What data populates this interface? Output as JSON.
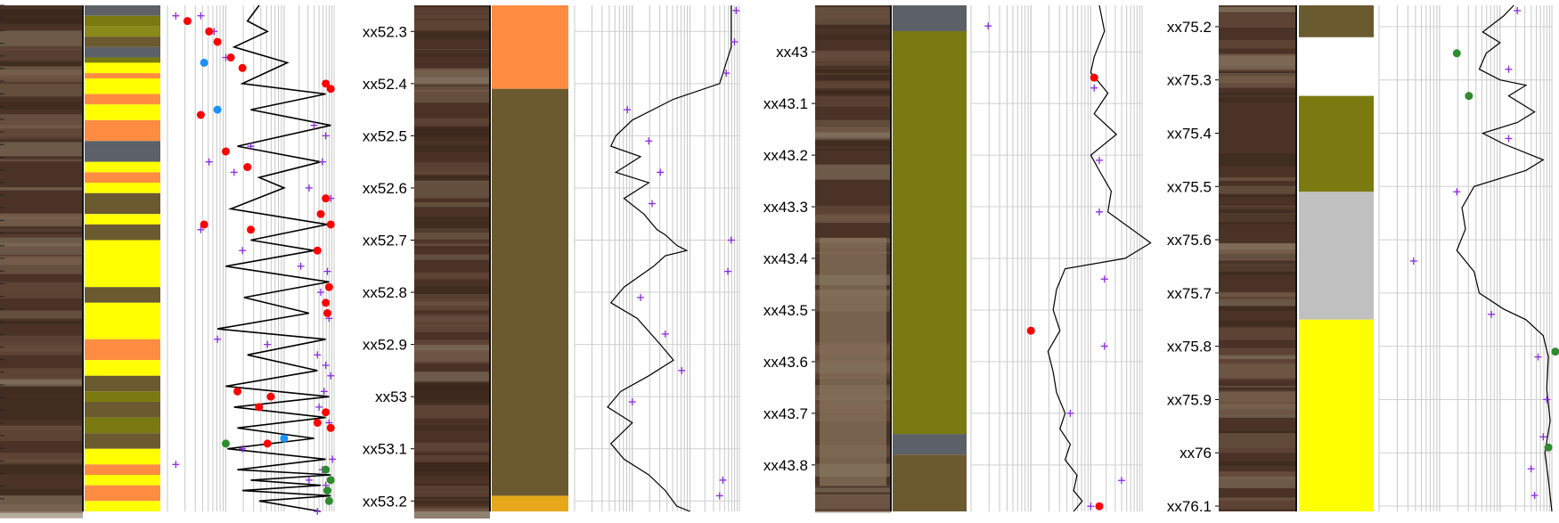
{
  "chart_data": [
    {
      "type": "line",
      "title": "",
      "core_image": "core-photo",
      "depth_ticks": [],
      "ylim": [
        52.25,
        53.22
      ],
      "xlim": [
        0,
        1
      ],
      "lithology": [
        {
          "top": 52.25,
          "base": 52.27,
          "color": "#5b6166"
        },
        {
          "top": 52.27,
          "base": 52.29,
          "color": "#7a7a10"
        },
        {
          "top": 52.29,
          "base": 52.31,
          "color": "#8a8a1a"
        },
        {
          "top": 52.31,
          "base": 52.33,
          "color": "#6b5a30"
        },
        {
          "top": 52.33,
          "base": 52.35,
          "color": "#5b6166"
        },
        {
          "top": 52.35,
          "base": 52.36,
          "color": "#7a7a10"
        },
        {
          "top": 52.36,
          "base": 52.38,
          "color": "#ffff00"
        },
        {
          "top": 52.38,
          "base": 52.39,
          "color": "#ff8c40"
        },
        {
          "top": 52.39,
          "base": 52.42,
          "color": "#ffff00"
        },
        {
          "top": 52.42,
          "base": 52.44,
          "color": "#ff8c40"
        },
        {
          "top": 52.44,
          "base": 52.47,
          "color": "#ffff00"
        },
        {
          "top": 52.47,
          "base": 52.51,
          "color": "#ff8c40"
        },
        {
          "top": 52.51,
          "base": 52.53,
          "color": "#5b6166"
        },
        {
          "top": 52.53,
          "base": 52.55,
          "color": "#5b6166"
        },
        {
          "top": 52.55,
          "base": 52.57,
          "color": "#ffff00"
        },
        {
          "top": 52.57,
          "base": 52.59,
          "color": "#ff8c40"
        },
        {
          "top": 52.59,
          "base": 52.61,
          "color": "#ffff00"
        },
        {
          "top": 52.61,
          "base": 52.65,
          "color": "#6b5a30"
        },
        {
          "top": 52.65,
          "base": 52.67,
          "color": "#ffff00"
        },
        {
          "top": 52.67,
          "base": 52.7,
          "color": "#6b5a30"
        },
        {
          "top": 52.7,
          "base": 52.79,
          "color": "#ffff00"
        },
        {
          "top": 52.79,
          "base": 52.82,
          "color": "#6b5a30"
        },
        {
          "top": 52.82,
          "base": 52.89,
          "color": "#ffff00"
        },
        {
          "top": 52.89,
          "base": 52.93,
          "color": "#ff8c40"
        },
        {
          "top": 52.93,
          "base": 52.96,
          "color": "#ffff00"
        },
        {
          "top": 52.96,
          "base": 52.99,
          "color": "#6b5a30"
        },
        {
          "top": 52.99,
          "base": 53.01,
          "color": "#7a7a10"
        },
        {
          "top": 53.01,
          "base": 53.04,
          "color": "#6b5a30"
        },
        {
          "top": 53.04,
          "base": 53.07,
          "color": "#7a7a10"
        },
        {
          "top": 53.07,
          "base": 53.1,
          "color": "#6b5a30"
        },
        {
          "top": 53.1,
          "base": 53.13,
          "color": "#ffff00"
        },
        {
          "top": 53.13,
          "base": 53.15,
          "color": "#ff8c40"
        },
        {
          "top": 53.15,
          "base": 53.17,
          "color": "#ffff00"
        },
        {
          "top": 53.17,
          "base": 53.2,
          "color": "#ff8c40"
        },
        {
          "top": 53.2,
          "base": 53.22,
          "color": "#ffff00"
        }
      ],
      "log_curve": {
        "color": "#000000",
        "x": [
          0.55,
          0.48,
          0.6,
          0.4,
          0.72,
          0.45,
          0.95,
          0.5,
          0.98,
          0.42,
          0.92,
          0.55,
          0.7,
          0.38,
          0.96,
          0.5,
          0.88,
          0.35,
          0.97,
          0.46,
          0.85,
          0.3,
          0.95,
          0.48,
          0.9,
          0.35,
          0.97,
          0.4,
          0.95,
          0.42,
          0.88,
          0.36,
          0.95,
          0.42,
          0.98,
          0.5,
          0.92,
          0.45,
          0.98,
          0.55,
          0.92
        ],
        "y": [
          52.25,
          52.28,
          52.3,
          52.33,
          52.36,
          52.4,
          52.42,
          52.45,
          52.48,
          52.52,
          52.55,
          52.58,
          52.6,
          52.64,
          52.67,
          52.7,
          52.72,
          52.75,
          52.78,
          52.81,
          52.84,
          52.87,
          52.89,
          52.92,
          52.95,
          52.98,
          53.0,
          53.02,
          53.04,
          53.06,
          53.08,
          53.1,
          53.12,
          53.14,
          53.15,
          53.16,
          53.17,
          53.18,
          53.19,
          53.2,
          53.22
        ]
      },
      "markers": [
        {
          "kind": "cross",
          "color": "#8a2be2",
          "x": [
            0.05,
            0.12,
            0.2,
            0.28,
            0.35,
            0.5,
            0.25,
            0.4,
            0.88,
            0.95,
            0.93,
            0.85,
            0.98,
            0.2,
            0.45,
            0.8,
            0.96,
            0.92,
            0.97,
            0.3,
            0.6,
            0.9,
            0.95,
            0.98,
            0.94,
            0.91,
            0.97,
            0.45,
            0.99,
            0.93,
            0.05,
            0.85,
            0.95,
            0.97,
            0.9
          ],
          "y": [
            52.27,
            52.28,
            52.27,
            52.3,
            52.35,
            52.52,
            52.55,
            52.57,
            52.48,
            52.5,
            52.55,
            52.6,
            52.62,
            52.68,
            52.72,
            52.75,
            52.76,
            52.8,
            52.85,
            52.89,
            52.9,
            52.92,
            52.94,
            52.96,
            52.99,
            53.02,
            53.05,
            53.1,
            53.12,
            53.14,
            53.13,
            53.16,
            53.17,
            53.2,
            53.22
          ]
        },
        {
          "kind": "dot",
          "color": "#ff0000",
          "x": [
            0.12,
            0.25,
            0.3,
            0.38,
            0.45,
            0.95,
            0.98,
            0.2,
            0.35,
            0.48,
            0.95,
            0.92,
            0.98,
            0.22,
            0.5,
            0.9,
            0.97,
            0.95,
            0.96,
            0.42,
            0.55,
            0.62,
            0.95,
            0.98,
            0.9,
            0.6
          ],
          "y": [
            52.28,
            52.3,
            52.32,
            52.35,
            52.37,
            52.4,
            52.41,
            52.46,
            52.53,
            52.56,
            52.62,
            52.65,
            52.67,
            52.67,
            52.68,
            52.72,
            52.79,
            52.82,
            52.84,
            52.99,
            53.02,
            53.0,
            53.03,
            53.06,
            53.05,
            53.09
          ]
        },
        {
          "kind": "dot",
          "color": "#2e8b2e",
          "x": [
            0.35,
            0.95,
            0.98,
            0.96,
            0.97
          ],
          "y": [
            53.09,
            53.14,
            53.16,
            53.18,
            53.2
          ]
        },
        {
          "kind": "dot",
          "color": "#1e90ff",
          "x": [
            0.22,
            0.3,
            0.7
          ],
          "y": [
            52.36,
            52.45,
            53.08
          ]
        }
      ]
    },
    {
      "type": "line",
      "title": "",
      "core_image": "core-photo",
      "depth_ticks": [
        "xx52.3",
        "xx52.4",
        "xx52.5",
        "xx52.6",
        "xx52.7",
        "xx52.8",
        "xx52.9",
        "xx53",
        "xx53.1",
        "xx53.2"
      ],
      "depth_values": [
        52.3,
        52.4,
        52.5,
        52.6,
        52.7,
        52.8,
        52.9,
        53.0,
        53.1,
        53.2
      ],
      "ylim": [
        52.25,
        53.22
      ],
      "xlim": [
        0,
        1
      ],
      "lithology": [
        {
          "top": 52.25,
          "base": 52.41,
          "color": "#ff8c40"
        },
        {
          "top": 52.41,
          "base": 53.19,
          "color": "#6b5a30"
        },
        {
          "top": 53.19,
          "base": 53.22,
          "color": "#e6a81a"
        }
      ],
      "log_curve": {
        "color": "#000000",
        "x": [
          0.95,
          0.95,
          0.88,
          0.6,
          0.35,
          0.25,
          0.22,
          0.4,
          0.25,
          0.45,
          0.3,
          0.42,
          0.5,
          0.55,
          0.62,
          0.68,
          0.55,
          0.48,
          0.3,
          0.22,
          0.38,
          0.52,
          0.6,
          0.45,
          0.28,
          0.2,
          0.35,
          0.22,
          0.3,
          0.45,
          0.55,
          0.62,
          0.7
        ],
        "y": [
          52.25,
          52.33,
          52.4,
          52.43,
          52.47,
          52.5,
          52.52,
          52.54,
          52.57,
          52.59,
          52.62,
          52.65,
          52.68,
          52.69,
          52.71,
          52.72,
          52.73,
          52.75,
          52.79,
          52.82,
          52.85,
          52.9,
          52.93,
          52.96,
          52.99,
          53.02,
          53.05,
          53.09,
          53.12,
          53.15,
          53.18,
          53.21,
          53.22
        ]
      },
      "markers": [
        {
          "kind": "cross",
          "color": "#8a2be2",
          "x": [
            0.98,
            0.97,
            0.92,
            0.32,
            0.45,
            0.52,
            0.47,
            0.95,
            0.93,
            0.4,
            0.55,
            0.65,
            0.35,
            0.9,
            0.88
          ],
          "y": [
            52.26,
            52.32,
            52.38,
            52.45,
            52.51,
            52.57,
            52.63,
            52.7,
            52.76,
            52.81,
            52.88,
            52.95,
            53.01,
            53.16,
            53.19
          ]
        }
      ]
    },
    {
      "type": "line",
      "title": "",
      "core_image": "core-photo",
      "depth_ticks": [
        "xx43",
        "xx43.1",
        "xx43.2",
        "xx43.3",
        "xx43.4",
        "xx43.5",
        "xx43.6",
        "xx43.7",
        "xx43.8"
      ],
      "depth_values": [
        43.0,
        43.1,
        43.2,
        43.3,
        43.4,
        43.5,
        43.6,
        43.7,
        43.8
      ],
      "ylim": [
        42.91,
        43.89
      ],
      "xlim": [
        0,
        1
      ],
      "lithology": [
        {
          "top": 42.91,
          "base": 42.96,
          "color": "#5b6166"
        },
        {
          "top": 42.96,
          "base": 43.74,
          "color": "#7a7a10"
        },
        {
          "top": 43.74,
          "base": 43.78,
          "color": "#5b6166"
        },
        {
          "top": 43.78,
          "base": 43.89,
          "color": "#6b5a30"
        }
      ],
      "log_curve": {
        "color": "#000000",
        "x": [
          0.75,
          0.78,
          0.72,
          0.7,
          0.8,
          0.72,
          0.85,
          0.7,
          0.75,
          0.82,
          0.8,
          1.05,
          0.9,
          0.55,
          0.5,
          0.48,
          0.52,
          0.45,
          0.48,
          0.5,
          0.55,
          0.52,
          0.58,
          0.55,
          0.62,
          0.6,
          0.65,
          0.6
        ],
        "y": [
          42.91,
          42.96,
          43.01,
          43.04,
          43.08,
          43.12,
          43.16,
          43.2,
          43.23,
          43.27,
          43.31,
          43.37,
          43.4,
          43.42,
          43.46,
          43.5,
          43.54,
          43.58,
          43.62,
          43.66,
          43.7,
          43.73,
          43.76,
          43.79,
          43.82,
          43.85,
          43.87,
          43.89
        ]
      },
      "markers": [
        {
          "kind": "cross",
          "color": "#8a2be2",
          "x": [
            0.1,
            0.72,
            0.75,
            0.75,
            0.78,
            0.78,
            0.58,
            0.88,
            0.7
          ],
          "y": [
            42.95,
            43.07,
            43.21,
            43.31,
            43.44,
            43.57,
            43.7,
            43.83,
            43.88
          ]
        },
        {
          "kind": "dot",
          "color": "#ff0000",
          "x": [
            0.72,
            0.35,
            0.75
          ],
          "y": [
            43.05,
            43.54,
            43.88
          ]
        }
      ]
    },
    {
      "type": "line",
      "title": "",
      "core_image": "core-photo",
      "depth_ticks": [
        "xx75.2",
        "xx75.3",
        "xx75.4",
        "xx75.5",
        "xx75.6",
        "xx75.7",
        "xx75.8",
        "xx75.9",
        "xx76",
        "xx76.1"
      ],
      "depth_values": [
        75.2,
        75.3,
        75.4,
        75.5,
        75.6,
        75.7,
        75.8,
        75.9,
        76.0,
        76.1
      ],
      "ylim": [
        75.16,
        76.11
      ],
      "xlim": [
        0,
        1
      ],
      "lithology": [
        {
          "top": 75.16,
          "base": 75.22,
          "color": "#6b5a30"
        },
        {
          "top": 75.22,
          "base": 75.33,
          "color": "#ffffff"
        },
        {
          "top": 75.33,
          "base": 75.51,
          "color": "#7a7a10"
        },
        {
          "top": 75.51,
          "base": 75.75,
          "color": "#c0c0c0"
        },
        {
          "top": 75.75,
          "base": 76.11,
          "color": "#ffff00"
        }
      ],
      "log_curve": {
        "color": "#000000",
        "x": [
          0.78,
          0.72,
          0.6,
          0.7,
          0.62,
          0.58,
          0.7,
          0.85,
          0.75,
          0.9,
          0.8,
          0.6,
          0.72,
          0.95,
          0.85,
          0.55,
          0.48,
          0.5,
          0.45,
          0.55,
          0.58,
          0.72,
          0.85,
          0.95,
          0.98,
          0.97,
          0.99,
          0.96,
          0.98,
          1.0
        ],
        "y": [
          75.16,
          75.18,
          75.21,
          75.23,
          75.25,
          75.28,
          75.3,
          75.31,
          75.33,
          75.36,
          75.38,
          75.4,
          75.42,
          75.45,
          75.47,
          75.5,
          75.54,
          75.58,
          75.62,
          75.66,
          75.7,
          75.73,
          75.75,
          75.78,
          75.82,
          75.88,
          75.94,
          76.0,
          76.05,
          76.11
        ]
      },
      "markers": [
        {
          "kind": "cross",
          "color": "#8a2be2",
          "x": [
            0.8,
            0.75,
            0.75,
            0.45,
            0.2,
            0.65,
            0.92,
            0.97,
            0.95,
            0.88,
            0.9
          ],
          "y": [
            75.17,
            75.28,
            75.41,
            75.51,
            75.64,
            75.74,
            75.82,
            75.9,
            75.97,
            76.03,
            76.08
          ]
        },
        {
          "kind": "dot",
          "color": "#2e8b2e",
          "x": [
            0.45,
            0.52,
            1.02,
            0.98
          ],
          "y": [
            75.25,
            75.33,
            75.81,
            75.99
          ]
        }
      ]
    }
  ]
}
